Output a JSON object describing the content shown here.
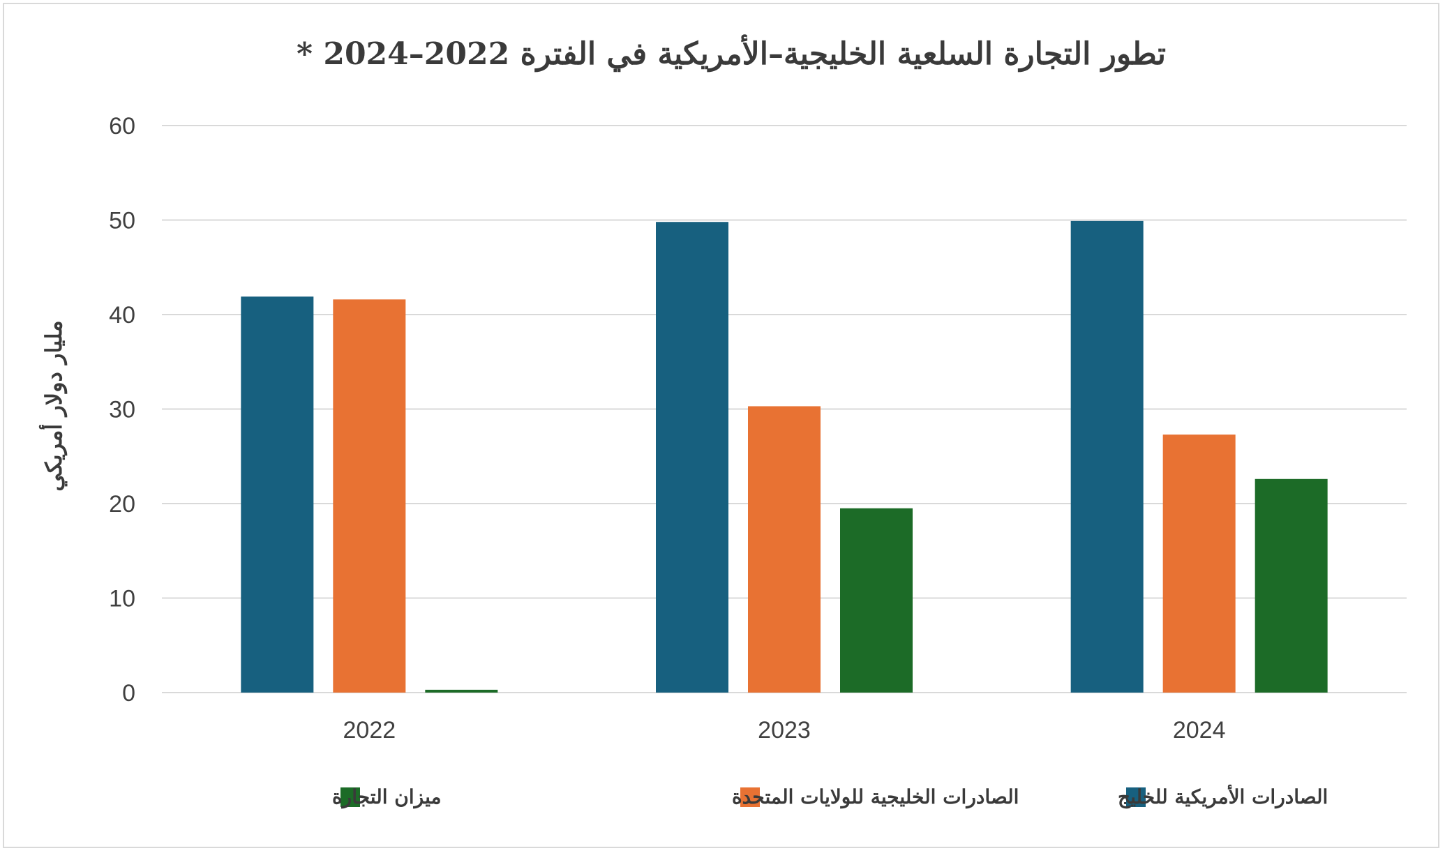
{
  "chart_data": {
    "type": "bar",
    "title": "تطور التجارة السلعية الخليجية–الأمريكية في الفترة 2022–2024 *",
    "ylabel": "مليار دولار أمريكي",
    "xlabel": "",
    "categories": [
      "2022",
      "2023",
      "2024"
    ],
    "ylim": [
      0,
      60
    ],
    "yticks": [
      0,
      10,
      20,
      30,
      40,
      50,
      60
    ],
    "grid": true,
    "legend_position": "bottom",
    "series": [
      {
        "name": "الصادرات الأمريكية للخليج",
        "color": "#17607f",
        "values": [
          41.9,
          49.8,
          49.9
        ]
      },
      {
        "name": "الصادرات الخليجية للولايات المتحدة",
        "color": "#e87233",
        "values": [
          41.6,
          30.3,
          27.3
        ]
      },
      {
        "name": "ميزان التجارة",
        "color": "#1c6b27",
        "values": [
          0.3,
          19.5,
          22.6
        ]
      }
    ]
  }
}
